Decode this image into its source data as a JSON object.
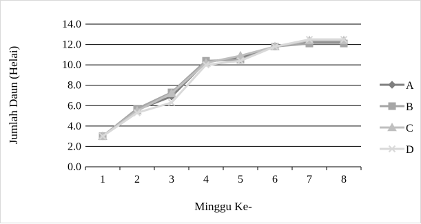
{
  "chart_data": {
    "type": "line",
    "title": "",
    "xlabel": "Minggu Ke-",
    "ylabel": "Jumlah Daun (Helai)",
    "categories": [
      "1",
      "2",
      "3",
      "4",
      "5",
      "6",
      "7",
      "8"
    ],
    "ylim": [
      0,
      14
    ],
    "yticks": [
      "0.0",
      "2.0",
      "4.0",
      "6.0",
      "8.0",
      "10.0",
      "12.0",
      "14.0"
    ],
    "grid": true,
    "legend_position": "right",
    "series": [
      {
        "name": "A",
        "values": [
          3.0,
          5.6,
          6.9,
          10.3,
          10.7,
          11.8,
          12.2,
          12.2
        ],
        "color": "#7f7f7f",
        "marker": "diamond"
      },
      {
        "name": "B",
        "values": [
          3.0,
          5.7,
          7.3,
          10.4,
          10.5,
          11.8,
          12.1,
          12.1
        ],
        "color": "#a6a6a6",
        "marker": "square"
      },
      {
        "name": "C",
        "values": [
          3.0,
          5.5,
          7.2,
          10.2,
          10.9,
          11.8,
          12.4,
          12.4
        ],
        "color": "#bfbfbf",
        "marker": "triangle"
      },
      {
        "name": "D",
        "values": [
          3.0,
          5.3,
          6.3,
          10.0,
          10.4,
          11.8,
          12.5,
          12.5
        ],
        "color": "#d9d9d9",
        "marker": "x"
      }
    ]
  }
}
